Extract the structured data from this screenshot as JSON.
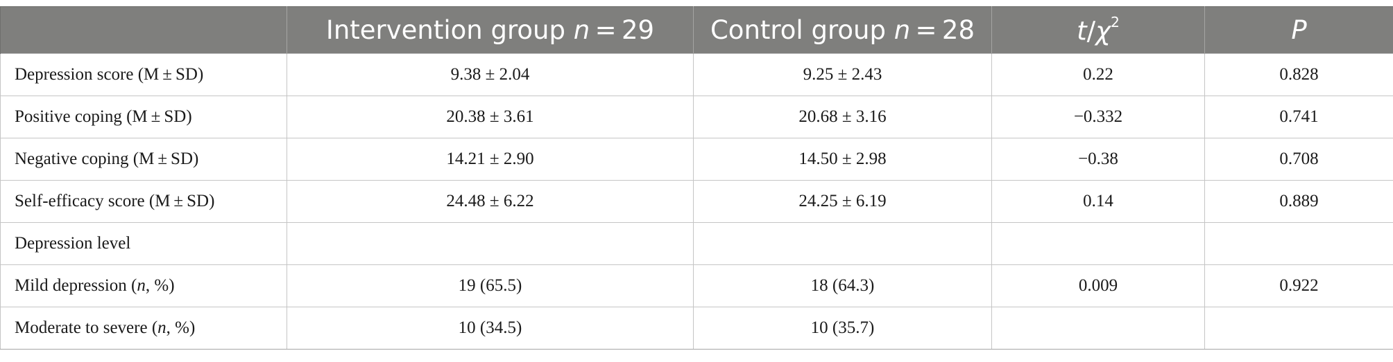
{
  "header": {
    "col0": "",
    "col1_text": "Intervention group ",
    "col1_n": "n",
    "col1_eq": " = 29",
    "col2_text": "Control group ",
    "col2_n": "n",
    "col2_eq": " = 28",
    "col3_t": "t",
    "col3_slash": "/",
    "col3_chi": "χ",
    "col3_sup": "2",
    "col4": "P"
  },
  "rows": [
    {
      "label": "Depression score (M ± SD)",
      "intervention": "9.38 ± 2.04",
      "control": "9.25 ± 2.43",
      "stat": "0.22",
      "p": "0.828"
    },
    {
      "label": "Positive coping (M ± SD)",
      "intervention": "20.38 ± 3.61",
      "control": "20.68 ± 3.16",
      "stat": "−0.332",
      "p": "0.741"
    },
    {
      "label": "Negative coping (M ± SD)",
      "intervention": "14.21 ± 2.90",
      "control": "14.50 ± 2.98",
      "stat": "−0.38",
      "p": "0.708"
    },
    {
      "label": "Self-efficacy score (M ± SD)",
      "intervention": "24.48 ± 6.22",
      "control": "24.25 ± 6.19",
      "stat": "0.14",
      "p": "0.889"
    },
    {
      "label": "Depression level",
      "intervention": "",
      "control": "",
      "stat": "",
      "p": ""
    },
    {
      "label_pre": "Mild depression (",
      "label_n": "n",
      "label_post": ", %)",
      "intervention": "19 (65.5)",
      "control": "18 (64.3)",
      "stat": "0.009",
      "p": "0.922"
    },
    {
      "label_pre": "Moderate to severe (",
      "label_n": "n",
      "label_post": ", %)",
      "intervention": "10 (34.5)",
      "control": "10 (35.7)",
      "stat": "",
      "p": ""
    }
  ]
}
